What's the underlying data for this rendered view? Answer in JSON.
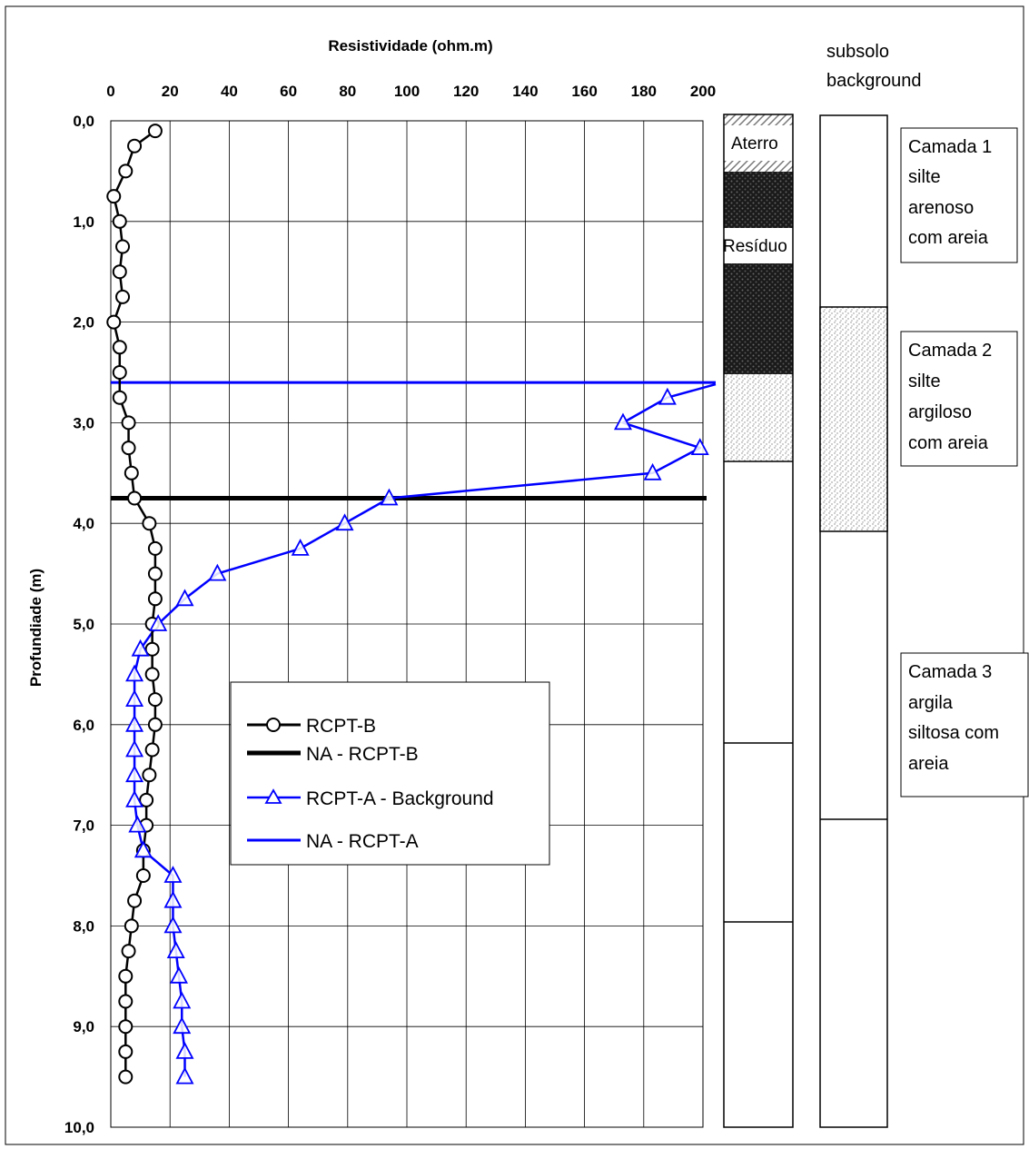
{
  "chart_data": {
    "type": "line",
    "xlabel": "Resistividade (ohm.m)",
    "ylabel": "Profundiade (m)",
    "xlim": [
      0,
      200
    ],
    "ylim": [
      0,
      10
    ],
    "y_inverted": true,
    "x_axis_position": "top",
    "grid": true,
    "x_ticks": [
      "0",
      "20",
      "40",
      "60",
      "80",
      "100",
      "120",
      "140",
      "160",
      "180",
      "200"
    ],
    "y_ticks": [
      "0,0",
      "1,0",
      "2,0",
      "3,0",
      "4,0",
      "5,0",
      "6,0",
      "7,0",
      "8,0",
      "9,0",
      "10,0"
    ],
    "legend_position": "center-left",
    "series": [
      {
        "name": "RCPT-B",
        "color": "#000000",
        "marker": "circle",
        "points": [
          [
            15,
            0.1
          ],
          [
            8,
            0.25
          ],
          [
            5,
            0.5
          ],
          [
            1,
            0.75
          ],
          [
            3,
            1.0
          ],
          [
            4,
            1.25
          ],
          [
            3,
            1.5
          ],
          [
            4,
            1.75
          ],
          [
            1,
            2.0
          ],
          [
            3,
            2.25
          ],
          [
            3,
            2.5
          ],
          [
            3,
            2.75
          ],
          [
            6,
            3.0
          ],
          [
            6,
            3.25
          ],
          [
            7,
            3.5
          ],
          [
            8,
            3.75
          ],
          [
            13,
            4.0
          ],
          [
            15,
            4.25
          ],
          [
            15,
            4.5
          ],
          [
            15,
            4.75
          ],
          [
            14,
            5.0
          ],
          [
            14,
            5.25
          ],
          [
            14,
            5.5
          ],
          [
            15,
            5.75
          ],
          [
            15,
            6.0
          ],
          [
            14,
            6.25
          ],
          [
            13,
            6.5
          ],
          [
            12,
            6.75
          ],
          [
            12,
            7.0
          ],
          [
            11,
            7.25
          ],
          [
            11,
            7.5
          ],
          [
            8,
            7.75
          ],
          [
            7,
            8.0
          ],
          [
            6,
            8.25
          ],
          [
            5,
            8.5
          ],
          [
            5,
            8.75
          ],
          [
            5,
            9.0
          ],
          [
            5,
            9.25
          ],
          [
            5,
            9.5
          ]
        ]
      },
      {
        "name": "NA - RCPT-B",
        "color": "#000000",
        "marker": "none",
        "depth": 3.75
      },
      {
        "name": "RCPT-A - Background",
        "color": "#0000ff",
        "marker": "triangle",
        "points": [
          [
            188,
            2.75
          ],
          [
            173,
            3.0
          ],
          [
            199,
            3.25
          ],
          [
            183,
            3.5
          ],
          [
            94,
            3.75
          ],
          [
            79,
            4.0
          ],
          [
            64,
            4.25
          ],
          [
            36,
            4.5
          ],
          [
            25,
            4.75
          ],
          [
            16,
            5.0
          ],
          [
            10,
            5.25
          ],
          [
            8,
            5.5
          ],
          [
            8,
            5.75
          ],
          [
            8,
            6.0
          ],
          [
            8,
            6.25
          ],
          [
            8,
            6.5
          ],
          [
            8,
            6.75
          ],
          [
            9,
            7.0
          ],
          [
            11,
            7.25
          ],
          [
            21,
            7.5
          ],
          [
            21,
            7.75
          ],
          [
            21,
            8.0
          ],
          [
            22,
            8.25
          ],
          [
            23,
            8.5
          ],
          [
            24,
            8.75
          ],
          [
            24,
            9.0
          ],
          [
            25,
            9.25
          ],
          [
            25,
            9.5
          ]
        ]
      },
      {
        "name": "NA - RCPT-A",
        "color": "#0000ff",
        "marker": "none",
        "depth": 2.6
      }
    ]
  },
  "strat_column_1": {
    "labels": [
      "Aterro",
      "Resíduo"
    ]
  },
  "strat_column_2": {
    "header": [
      "subsolo",
      "background"
    ]
  },
  "layer_boxes": [
    {
      "lines": [
        "Camada 1",
        "silte",
        "arenoso",
        "com areia"
      ]
    },
    {
      "lines": [
        "Camada 2",
        "silte",
        "argiloso",
        "com areia"
      ]
    },
    {
      "lines": [
        "Camada 3",
        "argila",
        "siltosa com",
        "areia"
      ]
    }
  ]
}
